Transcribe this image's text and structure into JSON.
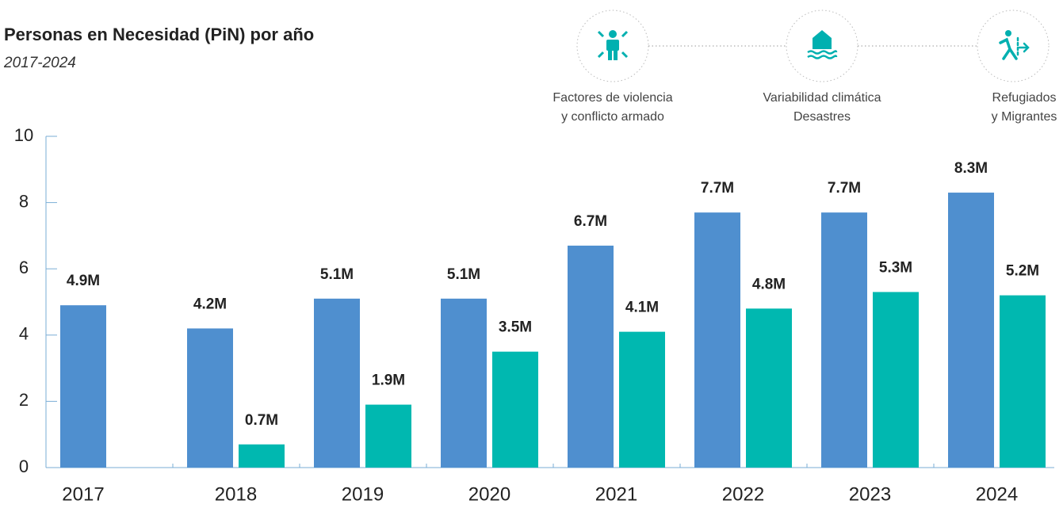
{
  "chart_data": {
    "type": "bar",
    "title": "Personas en Necesidad (PiN) por año",
    "subtitle": "2017-2024",
    "annotations": [
      [
        "Factores de violencia",
        "y conflicto armado"
      ],
      [
        "Variabilidad climática",
        "Desastres"
      ],
      [
        "Refugiados",
        "y Migrantes"
      ]
    ],
    "categories": [
      "2017",
      "2018",
      "2019",
      "2020",
      "2021",
      "2022",
      "2023",
      "2024"
    ],
    "series": [
      {
        "color": "#4f8fcf",
        "values": [
          4.9,
          4.2,
          5.1,
          5.1,
          6.7,
          7.7,
          7.7,
          8.3
        ],
        "value_labels": [
          "4.9M",
          "4.2M",
          "5.1M",
          "5.1M",
          "6.7M",
          "7.7M",
          "7.7M",
          "8.3M"
        ]
      },
      {
        "color": "#00b8b0",
        "values": [
          null,
          0.7,
          1.9,
          3.5,
          4.1,
          4.8,
          5.3,
          5.2
        ],
        "value_labels": [
          null,
          "0.7M",
          "1.9M",
          "3.5M",
          "4.1M",
          "4.8M",
          "5.3M",
          "5.2M"
        ]
      }
    ],
    "ylim": [
      0,
      10
    ],
    "yticks": [
      0,
      2,
      4,
      6,
      8,
      10
    ],
    "grid": false
  }
}
